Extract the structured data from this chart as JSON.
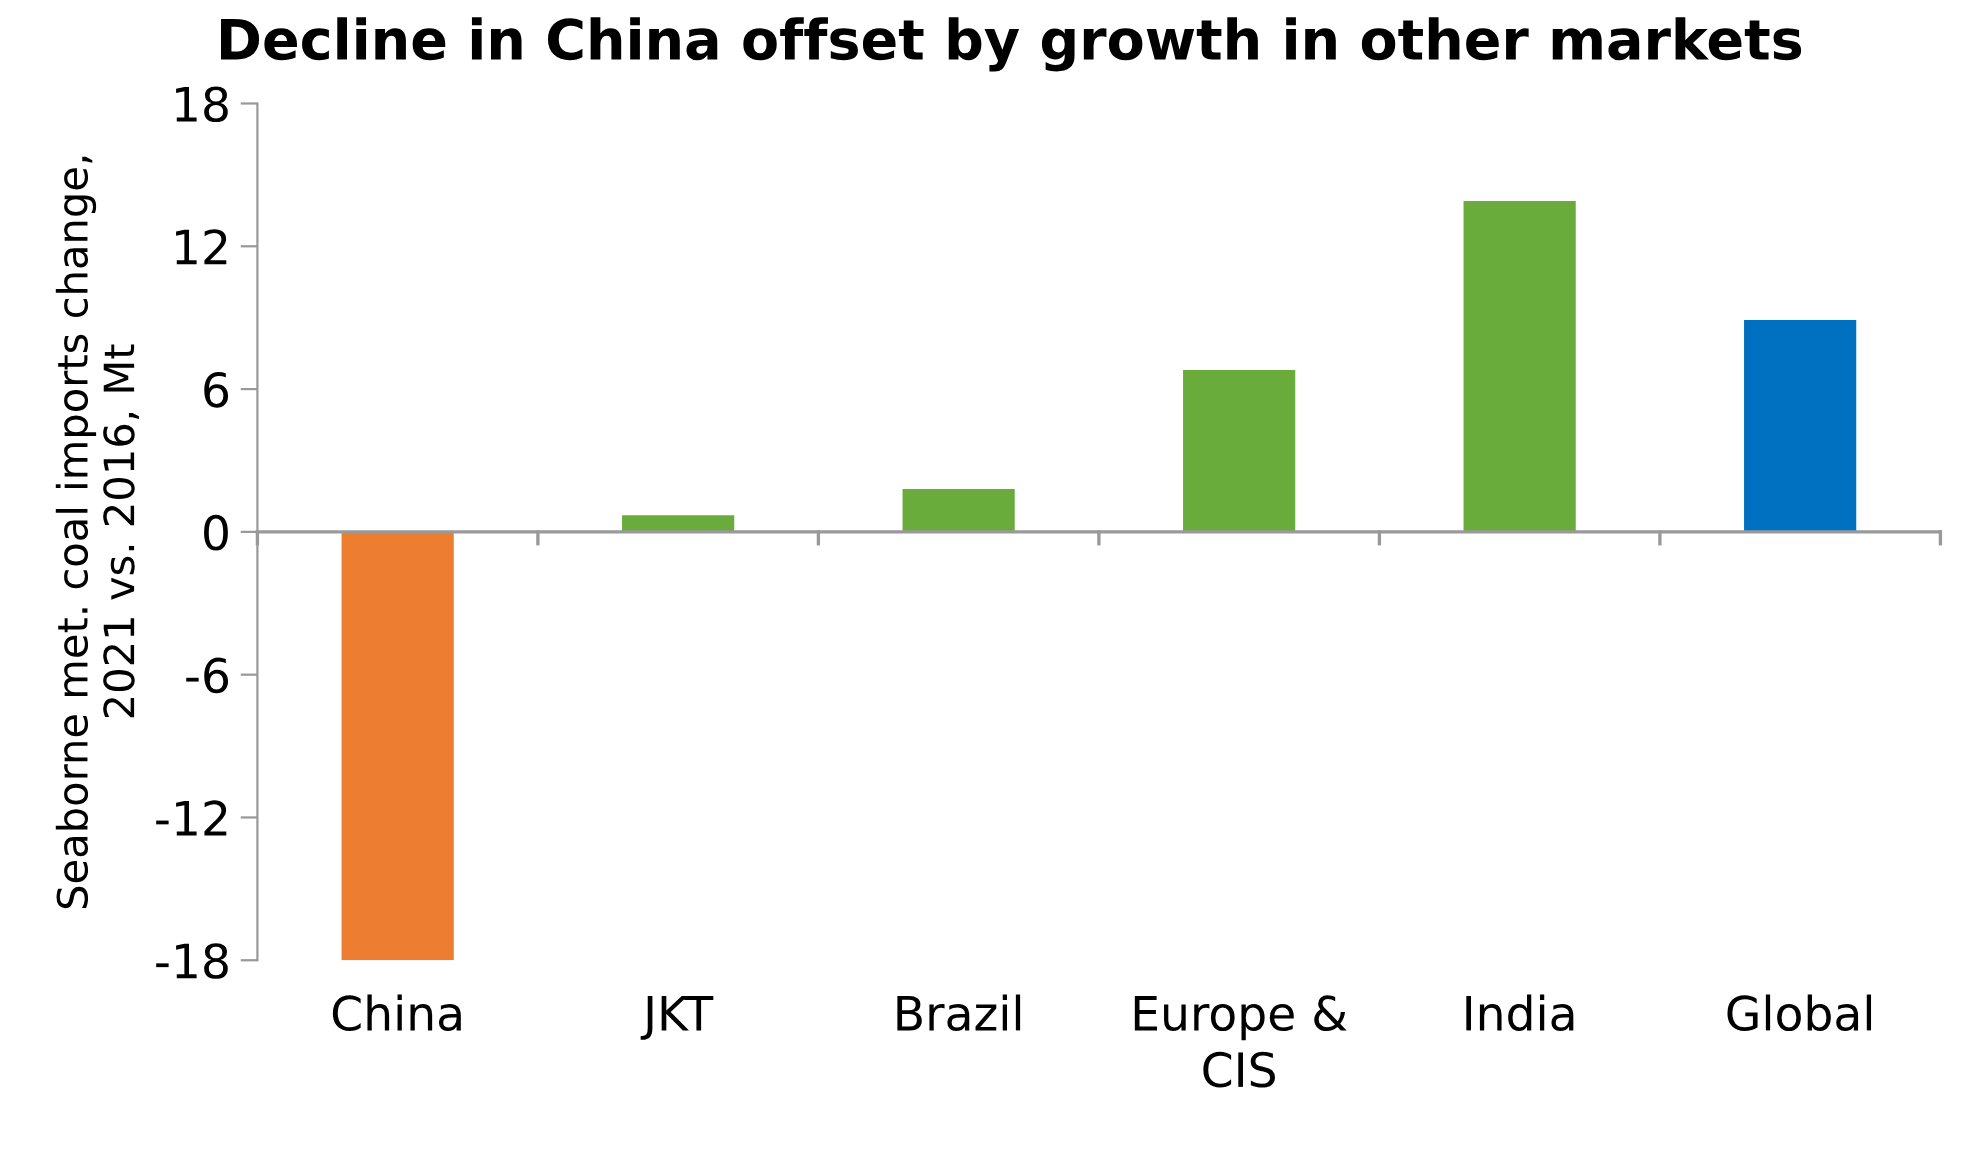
{
  "chart_data": {
    "type": "bar",
    "title": "Decline in China offset by growth in other markets",
    "ylabel": "Seaborne met. coal imports change,\n2021 vs. 2016, Mt",
    "categories": [
      "China",
      "JKT",
      "Brazil",
      "Europe &\nCIS",
      "India",
      "Global"
    ],
    "values": [
      -18,
      0.7,
      1.8,
      6.8,
      13.9,
      8.9
    ],
    "colors": [
      "#ed7d31",
      "#6aac3c",
      "#6aac3c",
      "#6aac3c",
      "#6aac3c",
      "#0070c0"
    ],
    "ylim": [
      -18,
      18
    ],
    "yticks": [
      -18,
      -12,
      -6,
      0,
      6,
      12,
      18
    ]
  }
}
